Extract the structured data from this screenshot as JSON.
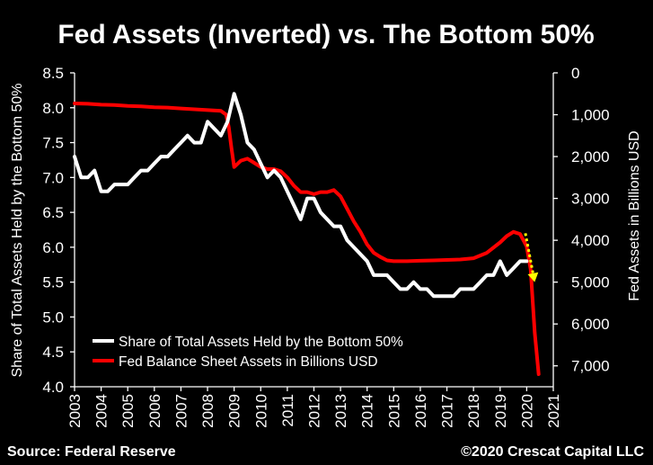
{
  "chart_data": {
    "type": "line",
    "title": "Fed Assets (Inverted) vs. The Bottom 50%",
    "source": "Source: Federal Reserve",
    "copyright": "©2020 Crescat Capital LLC",
    "xlim": [
      2003,
      2021
    ],
    "x_ticks": [
      "2003",
      "2004",
      "2005",
      "2006",
      "2007",
      "2008",
      "2009",
      "2010",
      "2011",
      "2012",
      "2013",
      "2014",
      "2015",
      "2016",
      "2017",
      "2018",
      "2019",
      "2020",
      "2021"
    ],
    "left_axis": {
      "label": "Share of Total Assets Held by the Bottom 50%",
      "range": [
        4.0,
        8.5
      ],
      "ticks": [
        "4.0",
        "4.5",
        "5.0",
        "5.5",
        "6.0",
        "6.5",
        "7.0",
        "7.5",
        "8.0",
        "8.5"
      ]
    },
    "right_axis": {
      "label": "Fed Assets in Billions USD",
      "inverted": true,
      "range": [
        0,
        7500
      ],
      "ticks": [
        "0",
        "1,000",
        "2,000",
        "3,000",
        "4,000",
        "5,000",
        "6,000",
        "7,000"
      ],
      "tick_values": [
        0,
        1000,
        2000,
        3000,
        4000,
        5000,
        6000,
        7000
      ]
    },
    "legend": {
      "placement": "bottom-left"
    },
    "series": [
      {
        "name": "Share of Total Assets Held by the Bottom 50%",
        "axis": "left",
        "color": "#ffffff",
        "points": [
          [
            2003.0,
            7.3
          ],
          [
            2003.25,
            7.0
          ],
          [
            2003.5,
            7.0
          ],
          [
            2003.75,
            7.1
          ],
          [
            2004.0,
            6.8
          ],
          [
            2004.25,
            6.8
          ],
          [
            2004.5,
            6.9
          ],
          [
            2004.75,
            6.9
          ],
          [
            2005.0,
            6.9
          ],
          [
            2005.25,
            7.0
          ],
          [
            2005.5,
            7.1
          ],
          [
            2005.75,
            7.1
          ],
          [
            2006.0,
            7.2
          ],
          [
            2006.25,
            7.3
          ],
          [
            2006.5,
            7.3
          ],
          [
            2006.75,
            7.4
          ],
          [
            2007.0,
            7.5
          ],
          [
            2007.25,
            7.6
          ],
          [
            2007.5,
            7.5
          ],
          [
            2007.75,
            7.5
          ],
          [
            2008.0,
            7.8
          ],
          [
            2008.25,
            7.7
          ],
          [
            2008.5,
            7.6
          ],
          [
            2008.75,
            7.8
          ],
          [
            2009.0,
            8.2
          ],
          [
            2009.25,
            7.9
          ],
          [
            2009.5,
            7.5
          ],
          [
            2009.75,
            7.4
          ],
          [
            2010.0,
            7.2
          ],
          [
            2010.25,
            7.0
          ],
          [
            2010.5,
            7.1
          ],
          [
            2010.75,
            7.0
          ],
          [
            2011.0,
            6.8
          ],
          [
            2011.25,
            6.6
          ],
          [
            2011.5,
            6.4
          ],
          [
            2011.75,
            6.7
          ],
          [
            2012.0,
            6.7
          ],
          [
            2012.25,
            6.5
          ],
          [
            2012.5,
            6.4
          ],
          [
            2012.75,
            6.3
          ],
          [
            2013.0,
            6.3
          ],
          [
            2013.25,
            6.1
          ],
          [
            2013.5,
            6.0
          ],
          [
            2013.75,
            5.9
          ],
          [
            2014.0,
            5.8
          ],
          [
            2014.25,
            5.6
          ],
          [
            2014.5,
            5.6
          ],
          [
            2014.75,
            5.6
          ],
          [
            2015.0,
            5.5
          ],
          [
            2015.25,
            5.4
          ],
          [
            2015.5,
            5.4
          ],
          [
            2015.75,
            5.5
          ],
          [
            2016.0,
            5.4
          ],
          [
            2016.25,
            5.4
          ],
          [
            2016.5,
            5.3
          ],
          [
            2016.75,
            5.3
          ],
          [
            2017.0,
            5.3
          ],
          [
            2017.25,
            5.3
          ],
          [
            2017.5,
            5.4
          ],
          [
            2017.75,
            5.4
          ],
          [
            2018.0,
            5.4
          ],
          [
            2018.25,
            5.5
          ],
          [
            2018.5,
            5.6
          ],
          [
            2018.75,
            5.6
          ],
          [
            2019.0,
            5.8
          ],
          [
            2019.25,
            5.6
          ],
          [
            2019.5,
            5.7
          ],
          [
            2019.75,
            5.8
          ],
          [
            2020.0,
            5.8
          ]
        ]
      },
      {
        "name": "Fed Balance Sheet Assets in Billions USD",
        "axis": "right",
        "color": "#ff0000",
        "points": [
          [
            2003.0,
            730
          ],
          [
            2003.5,
            740
          ],
          [
            2004.0,
            760
          ],
          [
            2004.5,
            770
          ],
          [
            2005.0,
            790
          ],
          [
            2005.5,
            800
          ],
          [
            2006.0,
            820
          ],
          [
            2006.5,
            830
          ],
          [
            2007.0,
            850
          ],
          [
            2007.5,
            870
          ],
          [
            2008.0,
            890
          ],
          [
            2008.5,
            910
          ],
          [
            2008.7,
            1000
          ],
          [
            2008.8,
            1300
          ],
          [
            2008.9,
            1800
          ],
          [
            2009.0,
            2250
          ],
          [
            2009.25,
            2100
          ],
          [
            2009.5,
            2050
          ],
          [
            2009.75,
            2150
          ],
          [
            2010.0,
            2250
          ],
          [
            2010.25,
            2300
          ],
          [
            2010.5,
            2300
          ],
          [
            2010.75,
            2350
          ],
          [
            2011.0,
            2500
          ],
          [
            2011.25,
            2700
          ],
          [
            2011.5,
            2850
          ],
          [
            2011.75,
            2850
          ],
          [
            2012.0,
            2900
          ],
          [
            2012.25,
            2850
          ],
          [
            2012.5,
            2850
          ],
          [
            2012.75,
            2800
          ],
          [
            2013.0,
            2950
          ],
          [
            2013.25,
            3250
          ],
          [
            2013.5,
            3550
          ],
          [
            2013.75,
            3800
          ],
          [
            2014.0,
            4100
          ],
          [
            2014.25,
            4300
          ],
          [
            2014.5,
            4400
          ],
          [
            2014.75,
            4480
          ],
          [
            2015.0,
            4500
          ],
          [
            2015.5,
            4500
          ],
          [
            2016.0,
            4490
          ],
          [
            2016.5,
            4480
          ],
          [
            2017.0,
            4470
          ],
          [
            2017.5,
            4460
          ],
          [
            2018.0,
            4430
          ],
          [
            2018.5,
            4300
          ],
          [
            2019.0,
            4050
          ],
          [
            2019.25,
            3900
          ],
          [
            2019.5,
            3800
          ],
          [
            2019.75,
            3850
          ],
          [
            2020.0,
            4150
          ],
          [
            2020.15,
            4700
          ],
          [
            2020.3,
            6200
          ],
          [
            2020.45,
            7200
          ]
        ]
      }
    ],
    "annotations": [
      {
        "type": "dashed-arrow",
        "color": "#ffff00",
        "from": [
          2019.95,
          6.2
        ],
        "to": [
          2020.3,
          5.5
        ]
      }
    ]
  }
}
